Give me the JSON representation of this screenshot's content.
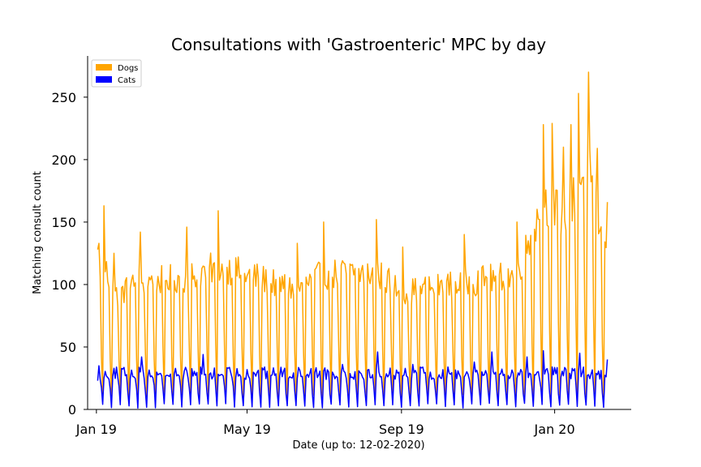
{
  "chart_data": {
    "type": "line",
    "title": "Consultations with 'Gastroenteric' MPC by day",
    "xlabel": "Date (up to: 12-02-2020)",
    "ylabel": "Matching consult count",
    "x_range": [
      "2018-12-25",
      "2020-03-02"
    ],
    "ylim": [
      0,
      283
    ],
    "y_ticks": [
      0,
      50,
      100,
      150,
      200,
      250
    ],
    "x_ticks": [
      {
        "date": "2019-01-01",
        "label": "Jan 19"
      },
      {
        "date": "2019-05-01",
        "label": "May 19"
      },
      {
        "date": "2019-09-01",
        "label": "Sep 19"
      },
      {
        "date": "2020-01-01",
        "label": "Jan 20"
      }
    ],
    "grid": false,
    "legend_position": "top-left",
    "series": [
      {
        "name": "Dogs",
        "color": "#ffa500",
        "x_start": "2019-01-02",
        "x_end": "2020-02-12",
        "weekly_pattern": "weekday values; Saturday roughly one third; Sunday near 8",
        "points": [
          {
            "date": "2019-01-02",
            "value": 128
          },
          {
            "date": "2019-01-03",
            "value": 133
          },
          {
            "date": "2019-01-07",
            "value": 163
          },
          {
            "date": "2019-01-15",
            "value": 125
          },
          {
            "date": "2019-02-05",
            "value": 142
          },
          {
            "date": "2019-03-14",
            "value": 146
          },
          {
            "date": "2019-04-08",
            "value": 159
          },
          {
            "date": "2019-06-10",
            "value": 133
          },
          {
            "date": "2019-07-01",
            "value": 150
          },
          {
            "date": "2019-08-12",
            "value": 152
          },
          {
            "date": "2019-09-02",
            "value": 130
          },
          {
            "date": "2019-10-21",
            "value": 140
          },
          {
            "date": "2019-12-02",
            "value": 150
          },
          {
            "date": "2019-12-23",
            "value": 228
          },
          {
            "date": "2019-12-30",
            "value": 229
          },
          {
            "date": "2020-01-08",
            "value": 210
          },
          {
            "date": "2020-01-14",
            "value": 228
          },
          {
            "date": "2020-01-20",
            "value": 253
          },
          {
            "date": "2020-01-28",
            "value": 270
          },
          {
            "date": "2020-02-04",
            "value": 209
          },
          {
            "date": "2020-02-12",
            "value": 166
          }
        ]
      },
      {
        "name": "Cats",
        "color": "#0000ff",
        "x_start": "2019-01-02",
        "x_end": "2020-02-12",
        "weekly_pattern": "weekday values around 28; Saturday near 15; Sunday near 2",
        "points": [
          {
            "date": "2019-01-02",
            "value": 23
          },
          {
            "date": "2019-01-03",
            "value": 35
          },
          {
            "date": "2019-02-06",
            "value": 42
          },
          {
            "date": "2019-03-27",
            "value": 44
          },
          {
            "date": "2019-07-16",
            "value": 36
          },
          {
            "date": "2019-08-13",
            "value": 46
          },
          {
            "date": "2019-09-10",
            "value": 36
          },
          {
            "date": "2019-10-29",
            "value": 38
          },
          {
            "date": "2019-11-12",
            "value": 46
          },
          {
            "date": "2019-12-10",
            "value": 42
          },
          {
            "date": "2019-12-23",
            "value": 47
          },
          {
            "date": "2020-01-21",
            "value": 45
          },
          {
            "date": "2020-02-12",
            "value": 40
          }
        ]
      }
    ]
  }
}
